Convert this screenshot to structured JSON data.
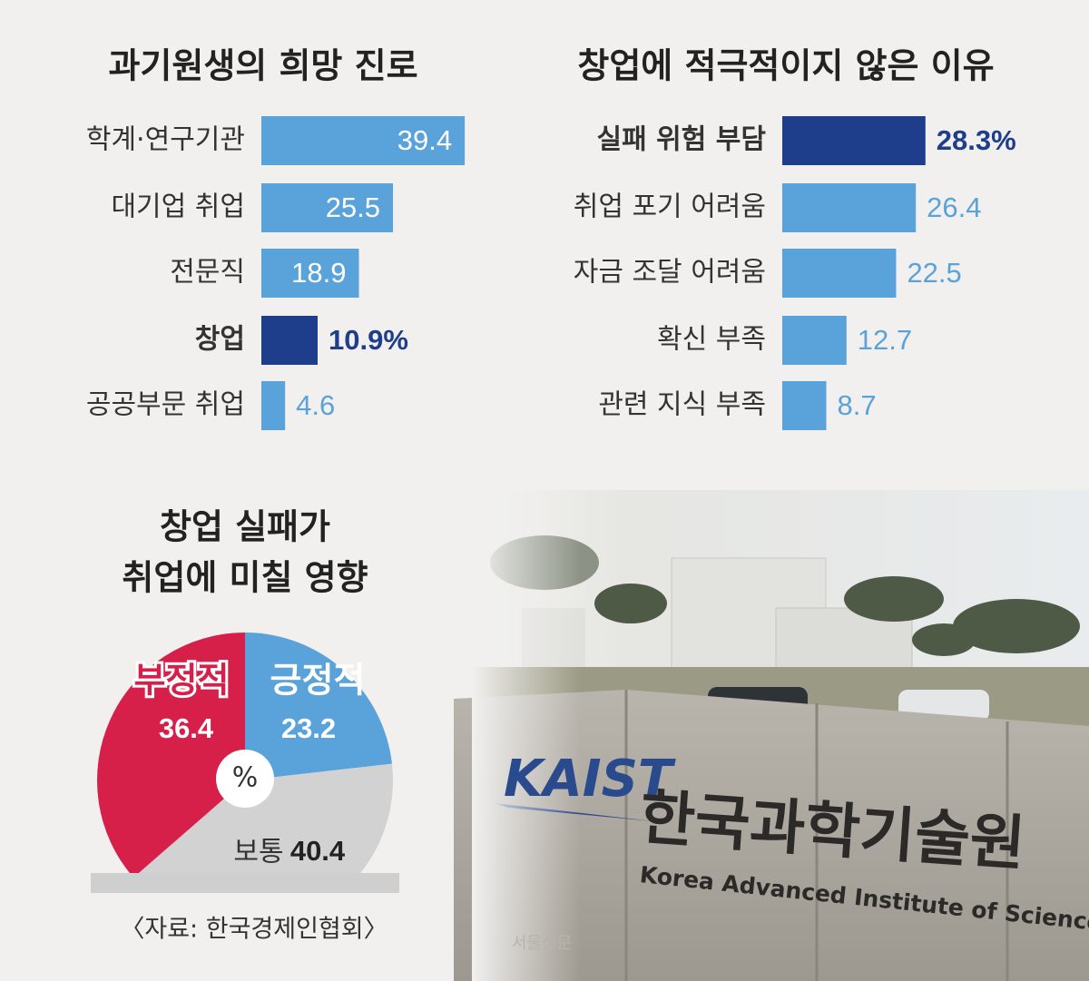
{
  "chart_data": [
    {
      "type": "hbar",
      "title": "과기원생의 희망 진로",
      "categories": [
        "학계·연구기관",
        "대기업 취업",
        "전문직",
        "창업",
        "공공부문 취업"
      ],
      "values": [
        39.4,
        25.5,
        18.9,
        10.9,
        4.6
      ],
      "value_labels": [
        "39.4",
        "25.5",
        "18.9",
        "10.9%",
        "4.6"
      ],
      "color": "#5aa2da",
      "colors": [
        "#5aa2da",
        "#5aa2da",
        "#5aa2da",
        "#1e3e8c",
        "#5aa2da"
      ],
      "xlim": [
        0,
        40
      ]
    },
    {
      "type": "hbar",
      "title": "창업에 적극적이지 않은 이유",
      "categories": [
        "실패 위험 부담",
        "취업 포기 어려움",
        "자금 조달 어려움",
        "확신 부족",
        "관련 지식 부족"
      ],
      "values": [
        28.3,
        26.4,
        22.5,
        12.7,
        8.7
      ],
      "value_labels": [
        "28.3%",
        "26.4",
        "22.5",
        "12.7",
        "8.7"
      ],
      "color": "#5aa2da",
      "colors": [
        "#1e3e8c",
        "#5aa2da",
        "#5aa2da",
        "#5aa2da",
        "#5aa2da"
      ],
      "xlim": [
        0,
        40
      ]
    },
    {
      "type": "pie",
      "title": [
        "창업 실패가",
        "취업에 미칠 영향"
      ],
      "categories": [
        "부정적",
        "긍정적",
        "보통"
      ],
      "values": [
        36.4,
        23.2,
        40.4
      ],
      "colors": [
        "#d6204a",
        "#5aa2da",
        "#d2d2d2"
      ],
      "unit": "%"
    }
  ],
  "source": "〈자료: 한국경제인협회〉",
  "watermark": "서울신문",
  "photo": {
    "logo": "KAIST",
    "sign_korean": "한국과학기술원",
    "sign_english": "Korea Advanced Institute of Science and Techn"
  }
}
